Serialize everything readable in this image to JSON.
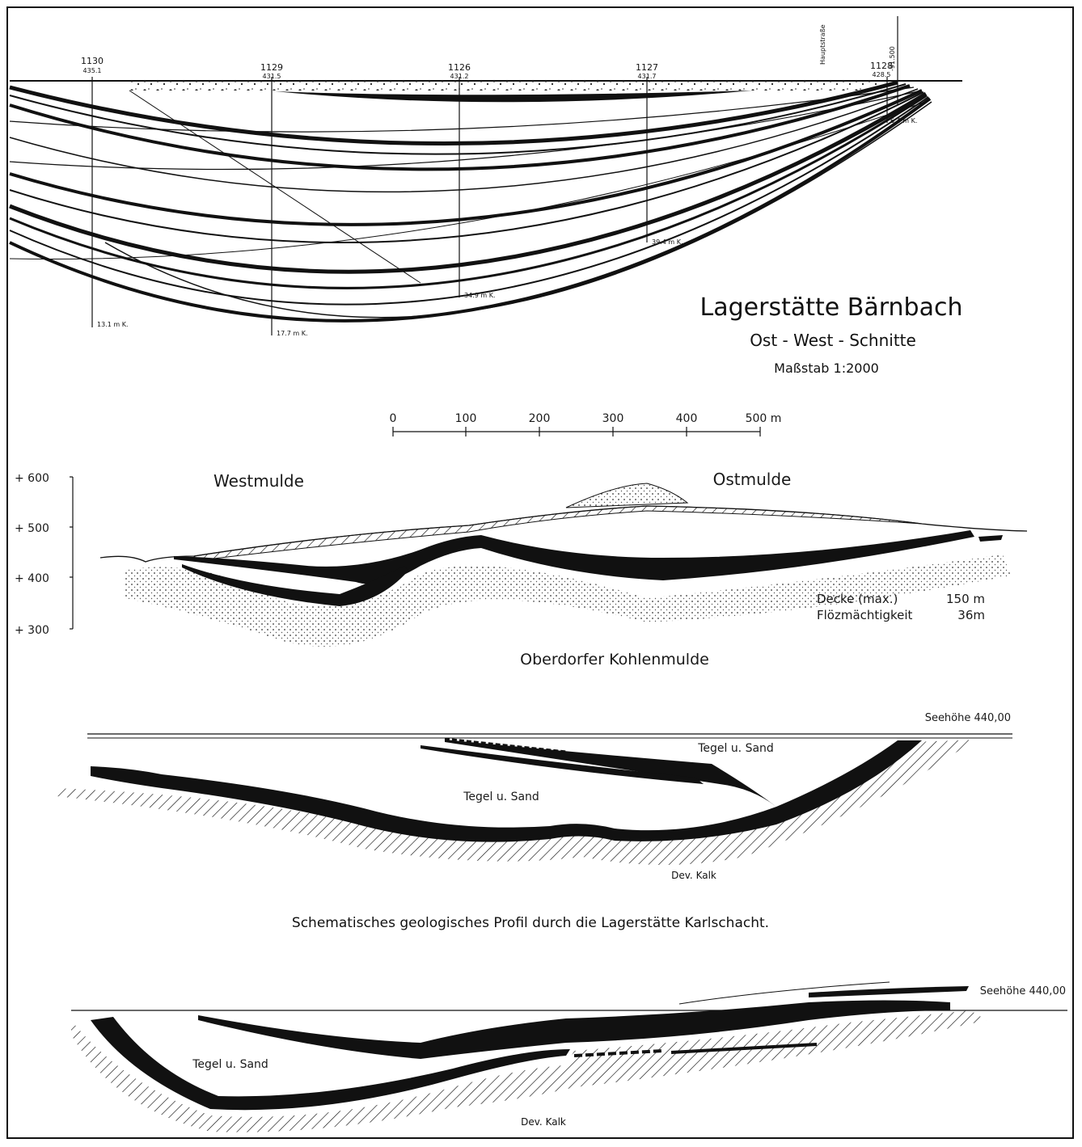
{
  "baernbach": {
    "title": "Lagerstätte Bärnbach",
    "subtitle": "Ost - West - Schnitte",
    "scale_text": "Maßstab 1:2000",
    "street_label": "Hauptstraße",
    "marker_label": "-91.500",
    "boreholes": [
      {
        "id": "1130",
        "elev": "435.1",
        "depth": "13.1 m K."
      },
      {
        "id": "1129",
        "elev": "431.5",
        "depth": "17.7 m K."
      },
      {
        "id": "1126",
        "elev": "431.2",
        "depth": "34.9 m K."
      },
      {
        "id": "1127",
        "elev": "431.7",
        "depth": "39.4 m K."
      },
      {
        "id": "1128",
        "elev": "428.5",
        "depth": "6.4 m K."
      }
    ]
  },
  "scalebar": {
    "ticks": [
      "0",
      "100",
      "200",
      "300",
      "400",
      "500 m"
    ]
  },
  "oberdorf": {
    "axis_ticks": [
      "+ 600",
      "+ 500",
      "+ 400",
      "+ 300"
    ],
    "west_label": "Westmulde",
    "east_label": "Ostmulde",
    "legend_rows": [
      {
        "label": "Decke  (max.)",
        "value": "150 m"
      },
      {
        "label": "Flözmächtigkeit",
        "value": "36m"
      }
    ],
    "caption": "Oberdorfer Kohlenmulde"
  },
  "karlschacht": {
    "sea_level": "Seehöhe  440,00",
    "label_upper": "Tegel  u.  Sand",
    "label_lower": "Tegel  u.  Sand",
    "bedrock": "Dev. Kalk",
    "caption": "Schematisches geologisches Profil durch die Lagerstätte Karlschacht."
  },
  "bottom_profile": {
    "sea_level": "Seehöhe 440,00",
    "label": "Tegel   u.   Sand",
    "bedrock": "Dev. Kalk"
  }
}
